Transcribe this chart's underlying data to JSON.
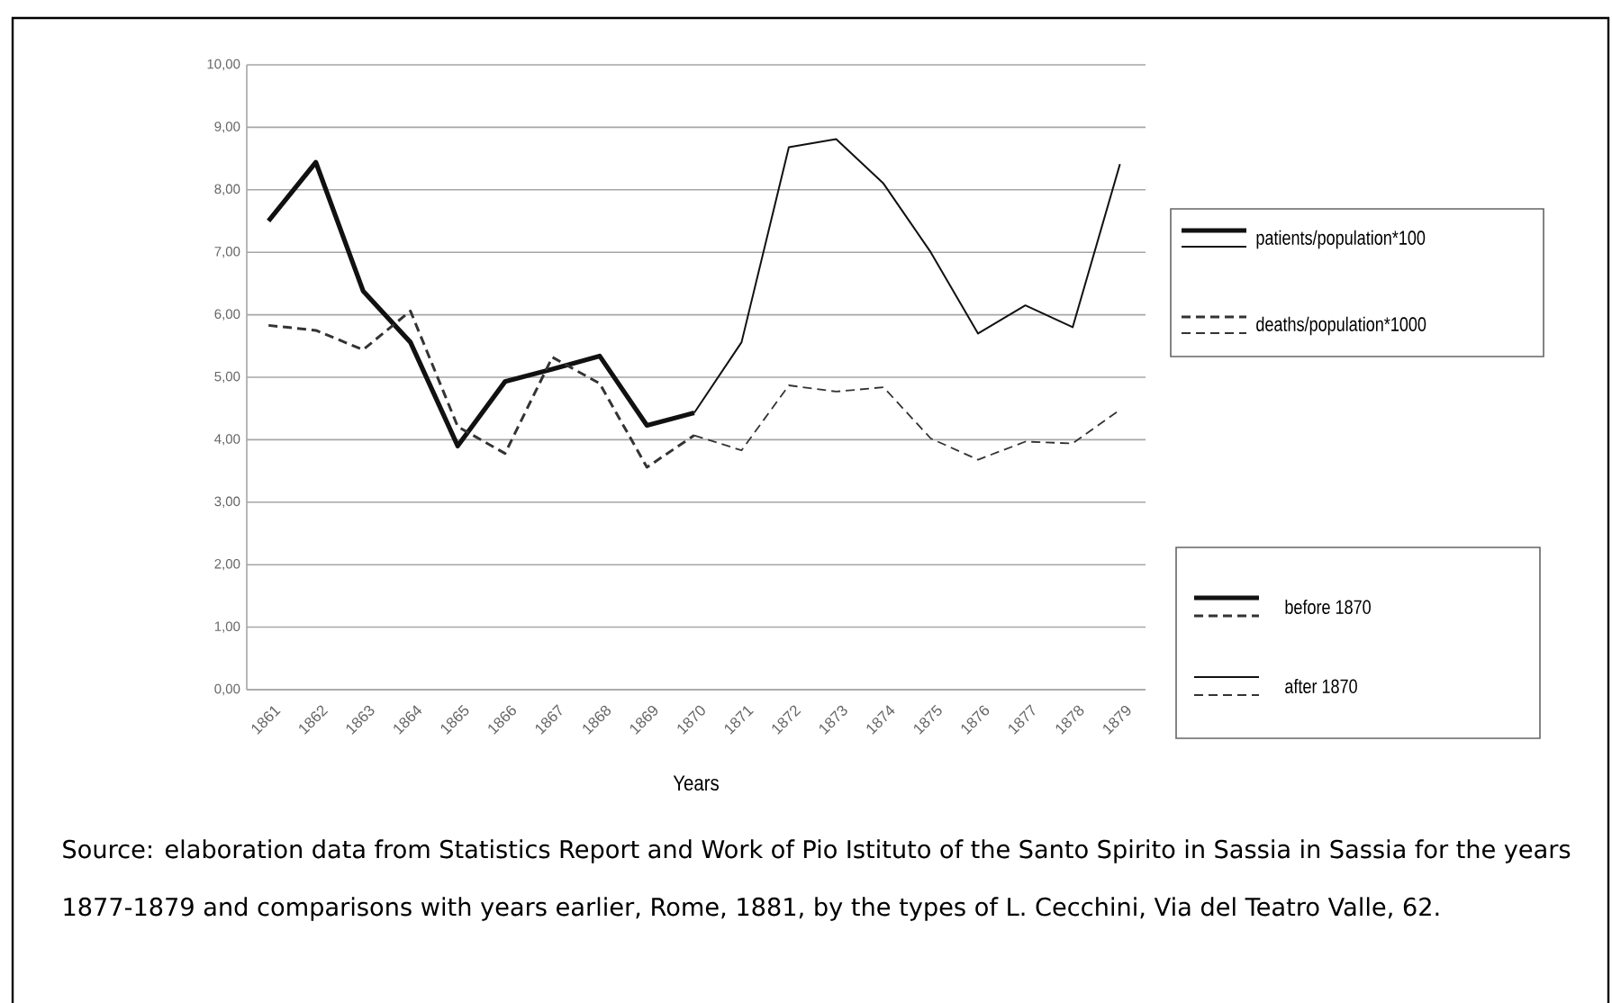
{
  "chart_data": {
    "type": "line",
    "xlabel": "Years",
    "categories": [
      "1861",
      "1862",
      "1863",
      "1864",
      "1865",
      "1866",
      "1867",
      "1868",
      "1869",
      "1870",
      "1871",
      "1872",
      "1873",
      "1874",
      "1875",
      "1876",
      "1877",
      "1878",
      "1879"
    ],
    "series": [
      {
        "color": "#111111",
        "line_style": "solid",
        "values": [
          7.5,
          8.44,
          6.38,
          5.56,
          3.9,
          4.93,
          5.13,
          5.34,
          4.23,
          4.43,
          null,
          null,
          null,
          null,
          null,
          null,
          null,
          null,
          null
        ]
      },
      {
        "color": "#111111",
        "line_style": "solid",
        "values": [
          null,
          null,
          null,
          null,
          null,
          null,
          null,
          null,
          null,
          4.43,
          5.56,
          8.68,
          8.81,
          8.1,
          7.0,
          5.7,
          6.15,
          5.8,
          8.41
        ]
      },
      {
        "color": "#333333",
        "line_style": "dashed",
        "values": [
          5.83,
          5.75,
          5.44,
          6.06,
          4.21,
          3.78,
          5.32,
          4.9,
          3.56,
          4.07,
          null,
          null,
          null,
          null,
          null,
          null,
          null,
          null,
          null
        ]
      },
      {
        "color": "#333333",
        "line_style": "dashed",
        "values": [
          null,
          null,
          null,
          null,
          null,
          null,
          null,
          null,
          null,
          4.07,
          3.83,
          4.87,
          4.77,
          4.84,
          4.02,
          3.68,
          3.97,
          3.94,
          4.48
        ]
      }
    ],
    "ylim": [
      0,
      10
    ],
    "yticks": [
      {
        "value": 0,
        "label": "0,00"
      },
      {
        "value": 1,
        "label": "1,00"
      },
      {
        "value": 2,
        "label": "2,00"
      },
      {
        "value": 3,
        "label": "3,00"
      },
      {
        "value": 4,
        "label": "4,00"
      },
      {
        "value": 5,
        "label": "5,00"
      },
      {
        "value": 6,
        "label": "6,00"
      },
      {
        "value": 7,
        "label": "7,00"
      },
      {
        "value": 8,
        "label": "8,00"
      },
      {
        "value": 9,
        "label": "9,00"
      },
      {
        "value": 10,
        "label": "10,00"
      }
    ],
    "grid": "y",
    "marker": "none",
    "annotations": [
      "patients/population*100",
      "deaths/population*1000",
      "before 1870",
      "after 1870",
      "Source: elaboration data from Statistics Report and Work of Pio Istituto of the Santo Spirito in Sassia in Sassia for the years 1877-1879 and comparisons with years earlier, Rome, 1881, by the types of L. Cecchini, Via del Teatro Valle, 62."
    ]
  }
}
